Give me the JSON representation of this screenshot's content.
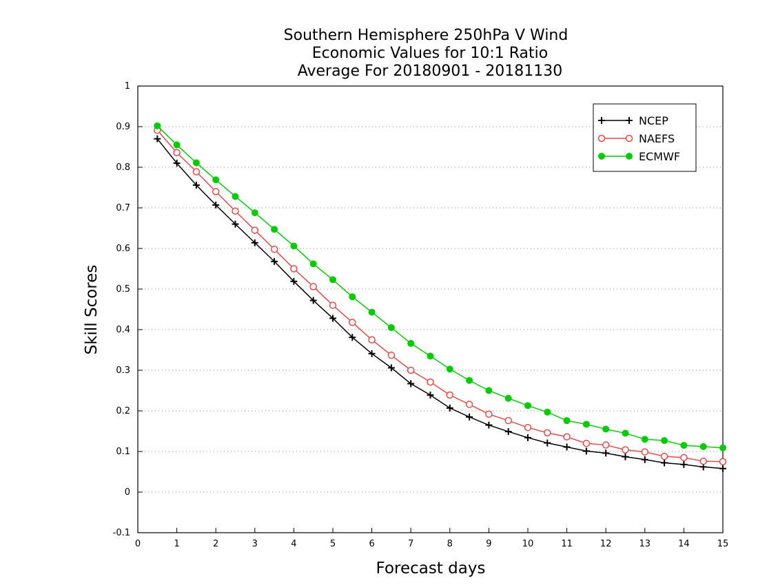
{
  "chart_data": {
    "type": "line",
    "title_lines": [
      "Southern Hemisphere 250hPa V Wind",
      "Economic Values for 10:1 Ratio",
      "Average For 20180901 - 20181130"
    ],
    "xlabel": "Forecast days",
    "ylabel": "Skill Scores",
    "xlim": [
      0,
      15
    ],
    "ylim": [
      -0.1,
      1
    ],
    "xticks": [
      0,
      1,
      2,
      3,
      4,
      5,
      6,
      7,
      8,
      9,
      10,
      11,
      12,
      13,
      14,
      15
    ],
    "yticks": [
      -0.1,
      0,
      0.1,
      0.2,
      0.3,
      0.4,
      0.5,
      0.6,
      0.7,
      0.8,
      0.9,
      1
    ],
    "ytick_labels": [
      "-0.1",
      "0",
      "0.1",
      "0.2",
      "0.3",
      "0.4",
      "0.5",
      "0.6",
      "0.7",
      "0.8",
      "0.9",
      "1"
    ],
    "grid": "horizontal-dotted",
    "legend_position": "top-right",
    "x": [
      0.5,
      1,
      1.5,
      2,
      2.5,
      3,
      3.5,
      4,
      4.5,
      5,
      5.5,
      6,
      6.5,
      7,
      7.5,
      8,
      8.5,
      9,
      9.5,
      10,
      10.5,
      11,
      11.5,
      12,
      12.5,
      13,
      13.5,
      14,
      14.5,
      15
    ],
    "series": [
      {
        "name": "NCEP",
        "color": "#000000",
        "marker": "plus",
        "values": [
          0.87,
          0.81,
          0.756,
          0.707,
          0.66,
          0.614,
          0.568,
          0.519,
          0.472,
          0.428,
          0.381,
          0.341,
          0.306,
          0.267,
          0.239,
          0.207,
          0.185,
          0.165,
          0.149,
          0.134,
          0.121,
          0.111,
          0.101,
          0.096,
          0.087,
          0.08,
          0.072,
          0.068,
          0.062,
          0.058
        ]
      },
      {
        "name": "NAEFS",
        "color": "#e84848",
        "marker": "open-circle",
        "values": [
          0.891,
          0.836,
          0.789,
          0.74,
          0.692,
          0.645,
          0.598,
          0.55,
          0.506,
          0.46,
          0.418,
          0.375,
          0.337,
          0.3,
          0.271,
          0.239,
          0.216,
          0.192,
          0.176,
          0.159,
          0.146,
          0.136,
          0.12,
          0.116,
          0.104,
          0.099,
          0.088,
          0.085,
          0.076,
          0.075
        ]
      },
      {
        "name": "ECMWF",
        "color": "#00cc00",
        "marker": "filled-circle",
        "values": [
          0.902,
          0.855,
          0.811,
          0.769,
          0.728,
          0.688,
          0.647,
          0.606,
          0.562,
          0.523,
          0.481,
          0.443,
          0.405,
          0.366,
          0.335,
          0.303,
          0.275,
          0.25,
          0.231,
          0.213,
          0.197,
          0.176,
          0.167,
          0.155,
          0.145,
          0.13,
          0.127,
          0.115,
          0.112,
          0.109
        ]
      }
    ]
  }
}
